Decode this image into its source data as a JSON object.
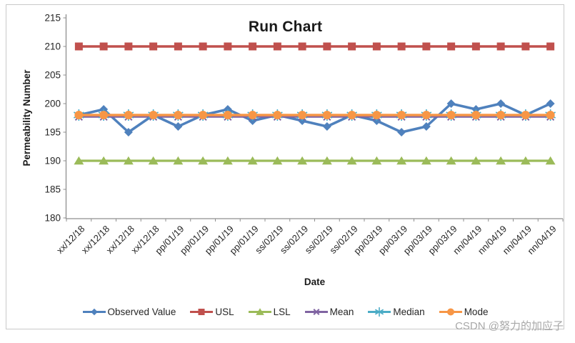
{
  "watermark": "CSDN @努力的加应子",
  "chart_data": {
    "type": "line",
    "title": "Run Chart",
    "xlabel": "Date",
    "ylabel": "Permeability Number",
    "ylim": [
      180,
      215
    ],
    "yticks": [
      215,
      210,
      205,
      200,
      195,
      190,
      185,
      180
    ],
    "grid": false,
    "legend_position": "bottom",
    "categories": [
      "xx/12/18",
      "xx/12/18",
      "xx/12/18",
      "xx/12/18",
      "pp/01/19",
      "pp/01/19",
      "pp/01/19",
      "pp/01/19",
      "ss/02/19",
      "ss/02/19",
      "ss/02/19",
      "ss/02/19",
      "pp/03/19",
      "pp/03/19",
      "pp/03/19",
      "pp/03/19",
      "nn/04/19",
      "nn/04/19",
      "nn/04/19",
      "nn/04/19"
    ],
    "series": [
      {
        "name": "Observed Value",
        "color": "#4F81BD",
        "marker": "diamond",
        "values": [
          198,
          199,
          195,
          198,
          196,
          198,
          199,
          197,
          198,
          197,
          196,
          198,
          197,
          195,
          196,
          200,
          199,
          200,
          198,
          200
        ]
      },
      {
        "name": "USL",
        "color": "#C0504D",
        "marker": "square",
        "values": [
          210,
          210,
          210,
          210,
          210,
          210,
          210,
          210,
          210,
          210,
          210,
          210,
          210,
          210,
          210,
          210,
          210,
          210,
          210,
          210
        ]
      },
      {
        "name": "LSL",
        "color": "#9BBB59",
        "marker": "triangle",
        "values": [
          190,
          190,
          190,
          190,
          190,
          190,
          190,
          190,
          190,
          190,
          190,
          190,
          190,
          190,
          190,
          190,
          190,
          190,
          190,
          190
        ]
      },
      {
        "name": "Mean",
        "color": "#8064A2",
        "marker": "x",
        "values": [
          197.7,
          197.7,
          197.7,
          197.7,
          197.7,
          197.7,
          197.7,
          197.7,
          197.7,
          197.7,
          197.7,
          197.7,
          197.7,
          197.7,
          197.7,
          197.7,
          197.7,
          197.7,
          197.7,
          197.7
        ]
      },
      {
        "name": "Median",
        "color": "#4BACC6",
        "marker": "star",
        "values": [
          198,
          198,
          198,
          198,
          198,
          198,
          198,
          198,
          198,
          198,
          198,
          198,
          198,
          198,
          198,
          198,
          198,
          198,
          198,
          198
        ]
      },
      {
        "name": "Mode",
        "color": "#F79646",
        "marker": "circle",
        "values": [
          198,
          198,
          198,
          198,
          198,
          198,
          198,
          198,
          198,
          198,
          198,
          198,
          198,
          198,
          198,
          198,
          198,
          198,
          198,
          198
        ]
      }
    ]
  }
}
